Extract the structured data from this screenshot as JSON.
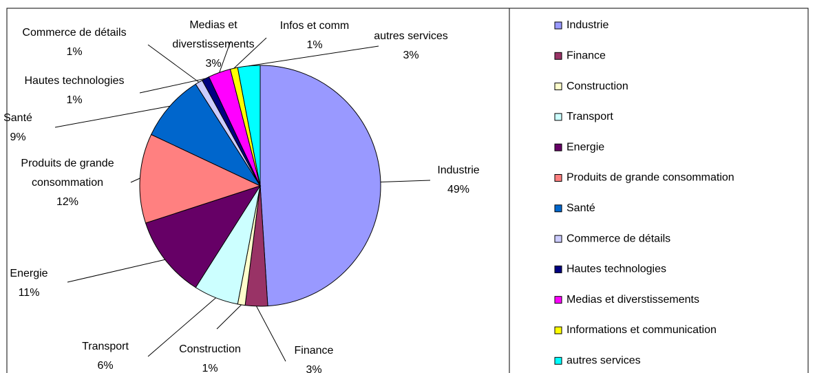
{
  "chart_data": {
    "type": "pie",
    "categories": [
      "Industrie",
      "Finance",
      "Construction",
      "Transport",
      "Energie",
      "Produits de grande consommation",
      "Santé",
      "Commerce de détails",
      "Hautes technologies",
      "Medias et diverstissements",
      "Informations et communication",
      "autres services"
    ],
    "labels": [
      [
        "Industrie"
      ],
      [
        "Finance"
      ],
      [
        "Construction"
      ],
      [
        "Transport"
      ],
      [
        "Energie"
      ],
      [
        "Produits de grande",
        "consommation"
      ],
      [
        "Santé"
      ],
      [
        "Commerce de détails"
      ],
      [
        "Hautes technologies"
      ],
      [
        "Medias et",
        "diverstissements"
      ],
      [
        "Infos et comm"
      ],
      [
        "autres services"
      ]
    ],
    "values": [
      49,
      3,
      1,
      6,
      11,
      12,
      9,
      1,
      1,
      3,
      1,
      3
    ],
    "value_labels": [
      "49%",
      "3%",
      "1%",
      "6%",
      "11%",
      "12%",
      "9%",
      "1%",
      "1%",
      "3%",
      "1%",
      "3%"
    ],
    "colors": [
      "#9999ff",
      "#993366",
      "#ffffcc",
      "#ccffff",
      "#660066",
      "#ff8080",
      "#0066cc",
      "#ccccff",
      "#000080",
      "#ff00ff",
      "#ffff00",
      "#00ffff"
    ],
    "legend": "right"
  }
}
